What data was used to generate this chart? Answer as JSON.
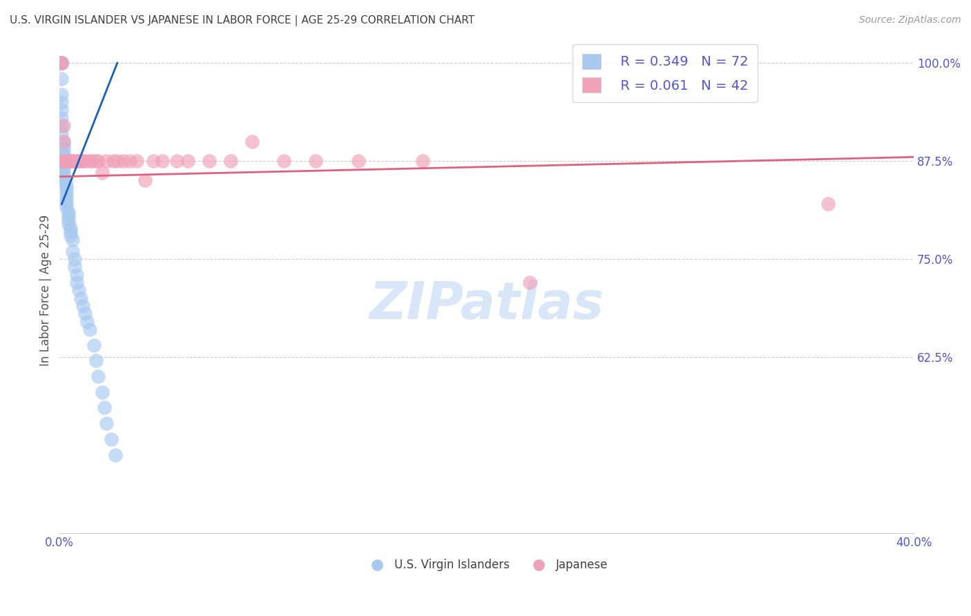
{
  "title": "U.S. VIRGIN ISLANDER VS JAPANESE IN LABOR FORCE | AGE 25-29 CORRELATION CHART",
  "source": "Source: ZipAtlas.com",
  "ylabel": "In Labor Force | Age 25-29",
  "xlim": [
    0.0,
    0.4
  ],
  "ylim": [
    0.4,
    1.02
  ],
  "yticks": [
    1.0,
    0.875,
    0.75,
    0.625
  ],
  "ytick_labels": [
    "100.0%",
    "87.5%",
    "75.0%",
    "62.5%"
  ],
  "xticks": [
    0.0,
    0.1,
    0.2,
    0.3,
    0.4
  ],
  "xtick_labels": [
    "0.0%",
    "",
    "",
    "",
    "40.0%"
  ],
  "legend_r1": "R = 0.349",
  "legend_n1": "N = 72",
  "legend_r2": "R = 0.061",
  "legend_n2": "N = 42",
  "blue_color": "#a8c8f0",
  "pink_color": "#f0a0b8",
  "trend_blue": "#1a5fba",
  "trend_pink": "#e06080",
  "axis_color": "#5555cc",
  "watermark_color": "#d0e0f5",
  "watermark": "ZIPatlas",
  "blue_x": [
    0.001,
    0.001,
    0.001,
    0.001,
    0.001,
    0.001,
    0.001,
    0.001,
    0.001,
    0.001,
    0.001,
    0.001,
    0.001,
    0.002,
    0.002,
    0.002,
    0.002,
    0.002,
    0.002,
    0.002,
    0.002,
    0.002,
    0.002,
    0.002,
    0.002,
    0.002,
    0.002,
    0.002,
    0.002,
    0.002,
    0.002,
    0.002,
    0.002,
    0.002,
    0.002,
    0.002,
    0.002,
    0.002,
    0.003,
    0.003,
    0.003,
    0.003,
    0.003,
    0.003,
    0.003,
    0.004,
    0.004,
    0.004,
    0.004,
    0.005,
    0.005,
    0.005,
    0.006,
    0.006,
    0.007,
    0.007,
    0.008,
    0.008,
    0.009,
    0.01,
    0.011,
    0.012,
    0.013,
    0.014,
    0.016,
    0.017,
    0.018,
    0.02,
    0.021,
    0.022,
    0.024,
    0.026
  ],
  "blue_y": [
    1.0,
    1.0,
    1.0,
    1.0,
    1.0,
    1.0,
    0.98,
    0.96,
    0.95,
    0.94,
    0.93,
    0.92,
    0.91,
    0.9,
    0.895,
    0.89,
    0.885,
    0.88,
    0.875,
    0.875,
    0.875,
    0.875,
    0.875,
    0.875,
    0.875,
    0.875,
    0.875,
    0.875,
    0.875,
    0.875,
    0.875,
    0.875,
    0.875,
    0.87,
    0.865,
    0.86,
    0.855,
    0.85,
    0.845,
    0.84,
    0.835,
    0.83,
    0.825,
    0.82,
    0.815,
    0.81,
    0.805,
    0.8,
    0.795,
    0.79,
    0.785,
    0.78,
    0.775,
    0.76,
    0.75,
    0.74,
    0.73,
    0.72,
    0.71,
    0.7,
    0.69,
    0.68,
    0.67,
    0.66,
    0.64,
    0.62,
    0.6,
    0.58,
    0.56,
    0.54,
    0.52,
    0.5
  ],
  "pink_x": [
    0.001,
    0.001,
    0.002,
    0.002,
    0.002,
    0.002,
    0.003,
    0.004,
    0.005,
    0.005,
    0.006,
    0.007,
    0.008,
    0.009,
    0.01,
    0.011,
    0.012,
    0.014,
    0.015,
    0.017,
    0.018,
    0.02,
    0.022,
    0.025,
    0.027,
    0.03,
    0.033,
    0.036,
    0.04,
    0.044,
    0.048,
    0.055,
    0.06,
    0.07,
    0.08,
    0.09,
    0.105,
    0.12,
    0.14,
    0.17,
    0.22,
    0.36
  ],
  "pink_y": [
    1.0,
    1.0,
    0.92,
    0.9,
    0.875,
    0.875,
    0.875,
    0.875,
    0.875,
    0.875,
    0.875,
    0.875,
    0.875,
    0.875,
    0.875,
    0.875,
    0.875,
    0.875,
    0.875,
    0.875,
    0.875,
    0.86,
    0.875,
    0.875,
    0.875,
    0.875,
    0.875,
    0.875,
    0.85,
    0.875,
    0.875,
    0.875,
    0.875,
    0.875,
    0.875,
    0.9,
    0.875,
    0.875,
    0.875,
    0.875,
    0.72,
    0.82
  ],
  "blue_trend_x": [
    0.001,
    0.027
  ],
  "blue_trend_y": [
    0.82,
    1.0
  ],
  "pink_trend_x": [
    0.0,
    0.4
  ],
  "pink_trend_y": [
    0.855,
    0.88
  ]
}
